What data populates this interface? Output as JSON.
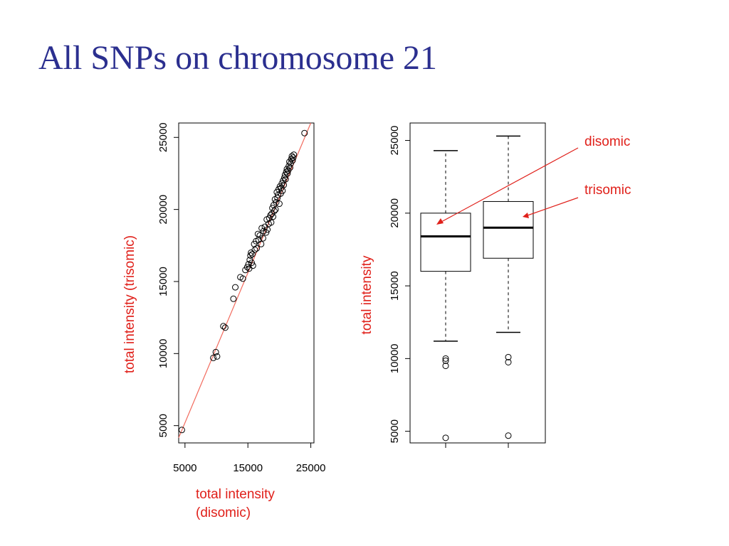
{
  "slide": {
    "title": "All SNPs on chromosome 21"
  },
  "colors": {
    "title": "#2b2f8f",
    "accent": "#e0201a",
    "fit_line": "#f26b5e"
  },
  "annotations": [
    {
      "text": "disomic",
      "target": "disomic box median"
    },
    {
      "text": "trisomic",
      "target": "trisomic box median"
    }
  ],
  "chart_data": [
    {
      "type": "scatter",
      "xlabel": "total intensity\n(disomic)",
      "xlabel_lines": [
        "total intensity",
        "(disomic)"
      ],
      "ylabel": "total intensity (trisomic)",
      "xlim": [
        4000,
        25500
      ],
      "ylim": [
        3800,
        26000
      ],
      "xticks": [
        5000,
        15000,
        25000
      ],
      "xtick_labels": [
        "5000",
        "15000",
        "25000"
      ],
      "yticks": [
        5000,
        10000,
        15000,
        20000,
        25000
      ],
      "ytick_labels": [
        "5000",
        "10000",
        "15000",
        "20000",
        "25000"
      ],
      "grid": false,
      "legend": "none",
      "fit_line": {
        "intercept": 0,
        "slope": 1.04
      },
      "series": [
        {
          "marker": "open-circle",
          "x": [
            4500,
            9500,
            9900,
            10100,
            11100,
            11400,
            12700,
            13000,
            13800,
            14200,
            14600,
            14900,
            15100,
            15200,
            15300,
            15400,
            15500,
            15600,
            15700,
            15800,
            16000,
            16100,
            16300,
            16400,
            16600,
            16700,
            16900,
            17100,
            17200,
            17400,
            17500,
            17700,
            17900,
            18000,
            18100,
            18300,
            18400,
            18600,
            18700,
            18800,
            18900,
            19000,
            19100,
            19200,
            19300,
            19400,
            19500,
            19600,
            19700,
            19800,
            19900,
            20000,
            20100,
            20200,
            20300,
            20400,
            20500,
            20600,
            20700,
            20800,
            20900,
            21000,
            21100,
            21200,
            21300,
            21400,
            21500,
            21600,
            21700,
            21800,
            21900,
            22000,
            22100,
            22200,
            22300,
            24000
          ],
          "y": [
            4700,
            9700,
            10100,
            9800,
            11900,
            11800,
            13800,
            14600,
            15300,
            15200,
            15800,
            16000,
            16200,
            15900,
            16500,
            16800,
            17000,
            16300,
            16900,
            16100,
            17600,
            17200,
            17800,
            17300,
            18300,
            17900,
            18200,
            17600,
            18700,
            18000,
            18500,
            18800,
            18400,
            19300,
            18600,
            19000,
            19400,
            19600,
            19100,
            19700,
            20100,
            19500,
            20300,
            19900,
            20700,
            20000,
            20500,
            21200,
            20800,
            21000,
            21400,
            20400,
            21600,
            21100,
            21500,
            21800,
            21300,
            22000,
            21700,
            22200,
            22400,
            22100,
            22600,
            22800,
            22500,
            22700,
            23000,
            23300,
            22900,
            23200,
            23500,
            23700,
            23400,
            23600,
            23800,
            25300
          ]
        }
      ]
    },
    {
      "type": "boxplot",
      "ylabel": "total intensity",
      "xlabel": "",
      "ylim": [
        4200,
        26200
      ],
      "yticks": [
        5000,
        10000,
        15000,
        20000,
        25000
      ],
      "ytick_labels": [
        "5000",
        "10000",
        "15000",
        "20000",
        "25000"
      ],
      "grid": false,
      "legend": "none",
      "boxes": [
        {
          "name": "disomic",
          "whisker_low": 11200,
          "q1": 16000,
          "median": 18400,
          "q3": 20000,
          "whisker_high": 24300,
          "outliers": [
            10000,
            9850,
            9500,
            4550
          ]
        },
        {
          "name": "trisomic",
          "whisker_low": 11800,
          "q1": 16900,
          "median": 19000,
          "q3": 20800,
          "whisker_high": 25300,
          "outliers": [
            10100,
            9750,
            4700
          ]
        }
      ]
    }
  ]
}
